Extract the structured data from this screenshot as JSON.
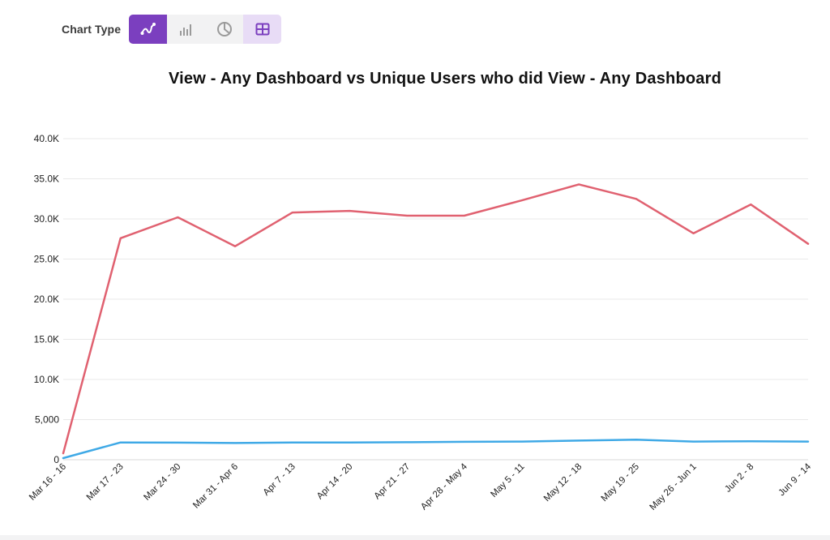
{
  "toolbar": {
    "label": "Chart Type",
    "buttons": [
      {
        "icon": "line-chart-icon",
        "state": "active"
      },
      {
        "icon": "bar-chart-icon",
        "state": "inactive"
      },
      {
        "icon": "pie-chart-icon",
        "state": "inactive"
      },
      {
        "icon": "table-icon",
        "state": "highlighted"
      }
    ],
    "colors": {
      "active": "#7b3fbf",
      "highlighted": "#e8dcf6",
      "inactive_icon": "#9a9a9a",
      "table_icon": "#7b3fbf"
    }
  },
  "chart_data": {
    "type": "line",
    "title": "View - Any Dashboard vs Unique Users who did View - Any Dashboard",
    "xlabel": "",
    "ylabel": "",
    "ylim": [
      0,
      40000
    ],
    "yticks": [
      "0",
      "5,000",
      "10.0K",
      "15.0K",
      "20.0K",
      "25.0K",
      "30.0K",
      "35.0K",
      "40.0K"
    ],
    "grid": true,
    "categories": [
      "Mar 16 - 16",
      "Mar 17 - 23",
      "Mar 24 - 30",
      "Mar 31 - Apr 6",
      "Apr 7 - 13",
      "Apr 14 - 20",
      "Apr 21 - 27",
      "Apr 28 - May 4",
      "May 5 - 11",
      "May 12 - 18",
      "May 19 - 25",
      "May 26 - Jun 1",
      "Jun 2 - 8",
      "Jun 9 - 14"
    ],
    "series": [
      {
        "color": "#e06170",
        "values": [
          800,
          27600,
          30200,
          26600,
          30800,
          31000,
          30400,
          30400,
          32300,
          34300,
          32500,
          28200,
          31800,
          26900
        ]
      },
      {
        "color": "#3fa9e6",
        "values": [
          200,
          2150,
          2130,
          2080,
          2150,
          2150,
          2180,
          2230,
          2260,
          2380,
          2500,
          2260,
          2300,
          2260
        ]
      }
    ]
  }
}
